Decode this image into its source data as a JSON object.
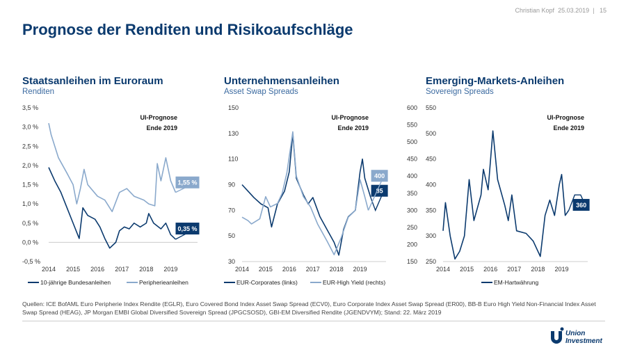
{
  "header": {
    "author": "Christian Kopf",
    "date": "25.03.2019",
    "separator": "|",
    "page": "15"
  },
  "title": "Prognose der Renditen und Risikoaufschläge",
  "colors": {
    "dark": "#0b3a6e",
    "light": "#8aa9cc",
    "zero": "#cccccc"
  },
  "chart_data": [
    {
      "type": "line",
      "title": "Staatsanleihen im Euroraum",
      "subtitle": "Renditen",
      "ylim": [
        -0.5,
        3.5
      ],
      "yticks": [
        "3,5 %",
        "3,0 %",
        "2,5 %",
        "2,0 %",
        "1,5 %",
        "1,0 %",
        "0,5 %",
        "0,0 %",
        "-0,5 %"
      ],
      "xticks": [
        "2014",
        "2015",
        "2016",
        "2017",
        "2018",
        "2019"
      ],
      "xlim": [
        2014,
        2020.1
      ],
      "annotation": "UI-Prognose\nEnde 2019",
      "annotation_lines": [
        "UI-Prognose",
        "Ende 2019"
      ],
      "series": [
        {
          "name": "10-jährige Bundesanleihen",
          "color": "#0b3a6e",
          "x": [
            2014.0,
            2014.25,
            2014.5,
            2014.75,
            2015.0,
            2015.25,
            2015.4,
            2015.6,
            2015.9,
            2016.1,
            2016.3,
            2016.5,
            2016.75,
            2016.9,
            2017.1,
            2017.3,
            2017.5,
            2017.75,
            2018.0,
            2018.1,
            2018.3,
            2018.6,
            2018.8,
            2019.0,
            2019.2
          ],
          "y": [
            1.95,
            1.6,
            1.3,
            0.9,
            0.5,
            0.1,
            0.9,
            0.7,
            0.6,
            0.4,
            0.1,
            -0.15,
            0.0,
            0.3,
            0.4,
            0.35,
            0.5,
            0.4,
            0.5,
            0.75,
            0.5,
            0.35,
            0.5,
            0.2,
            0.08
          ],
          "forecast": {
            "x": [
              2019.2,
              2020.0
            ],
            "y": [
              0.08,
              0.35
            ]
          },
          "label": "0,35 %"
        },
        {
          "name": "Peripherieanleihen",
          "color": "#8aa9cc",
          "x": [
            2014.0,
            2014.1,
            2014.4,
            2014.75,
            2015.0,
            2015.15,
            2015.3,
            2015.45,
            2015.6,
            2016.0,
            2016.3,
            2016.6,
            2016.9,
            2017.2,
            2017.5,
            2017.9,
            2018.1,
            2018.35,
            2018.45,
            2018.6,
            2018.8,
            2019.0,
            2019.2
          ],
          "y": [
            3.1,
            2.8,
            2.2,
            1.8,
            1.5,
            1.0,
            1.4,
            1.9,
            1.5,
            1.2,
            1.1,
            0.8,
            1.3,
            1.4,
            1.2,
            1.1,
            1.0,
            0.95,
            2.05,
            1.6,
            2.2,
            1.6,
            1.3
          ],
          "forecast": {
            "x": [
              2019.2,
              2020.0
            ],
            "y": [
              1.3,
              1.55
            ]
          },
          "label": "1,55 %"
        }
      ]
    },
    {
      "type": "line",
      "title": "Unternehmensanleihen",
      "subtitle": "Asset Swap Spreads",
      "ylim": [
        30,
        150
      ],
      "yticks": [
        "150",
        "130",
        "110",
        "90",
        "70",
        "50",
        "30"
      ],
      "y2lim": [
        150,
        600
      ],
      "y2ticks": [
        "600",
        "550",
        "500",
        "450",
        "400",
        "350",
        "300",
        "250",
        "200",
        "150"
      ],
      "xticks": [
        "2014",
        "2015",
        "2016",
        "2017",
        "2018",
        "2019"
      ],
      "xlim": [
        2014,
        2020.1
      ],
      "annotation_lines": [
        "UI-Prognose",
        "Ende 2019"
      ],
      "series": [
        {
          "name": "EUR-Corporates (links)",
          "axis": "left",
          "color": "#0b3a6e",
          "x": [
            2014.0,
            2014.25,
            2014.5,
            2014.8,
            2015.1,
            2015.25,
            2015.5,
            2015.8,
            2016.0,
            2016.15,
            2016.3,
            2016.6,
            2016.8,
            2017.0,
            2017.3,
            2017.6,
            2017.9,
            2018.1,
            2018.3,
            2018.5,
            2018.8,
            2019.0,
            2019.1,
            2019.2,
            2019.45
          ],
          "y": [
            90,
            85,
            80,
            75,
            72,
            57,
            75,
            85,
            100,
            130,
            95,
            82,
            75,
            80,
            65,
            55,
            45,
            35,
            55,
            65,
            70,
            100,
            110,
            95,
            80
          ],
          "forecast": {
            "x": [
              2019.45,
              2019.65,
              2020.0
            ],
            "y": [
              80,
              70,
              85
            ]
          },
          "label": "85"
        },
        {
          "name": "EUR-High Yield  (rechts)",
          "axis": "right",
          "color": "#8aa9cc",
          "x": [
            2014.0,
            2014.25,
            2014.4,
            2014.75,
            2015.0,
            2015.2,
            2015.5,
            2015.7,
            2015.9,
            2016.15,
            2016.3,
            2016.6,
            2016.9,
            2017.2,
            2017.6,
            2017.9,
            2018.2,
            2018.5,
            2018.8,
            2019.0,
            2019.2,
            2019.35
          ],
          "y": [
            280,
            270,
            260,
            275,
            340,
            310,
            320,
            350,
            410,
            530,
            400,
            340,
            310,
            260,
            210,
            170,
            220,
            280,
            300,
            390,
            340,
            300
          ],
          "forecast": {
            "x": [
              2019.35,
              2020.0
            ],
            "y": [
              300,
              400
            ]
          },
          "label": "400"
        }
      ]
    },
    {
      "type": "line",
      "title": "Emerging-Markets-Anleihen",
      "subtitle": "Sovereign Spreads",
      "ylim": [
        250,
        550
      ],
      "yticks": [
        "550",
        "500",
        "450",
        "400",
        "350",
        "300",
        "250"
      ],
      "xticks": [
        "2014",
        "2015",
        "2016",
        "2017",
        "2018",
        "2019"
      ],
      "xlim": [
        2014,
        2020.1
      ],
      "annotation_lines": [
        "UI-Prognose",
        "Ende 2019"
      ],
      "series": [
        {
          "name": "EM-Hartwährung",
          "color": "#0b3a6e",
          "x": [
            2014.0,
            2014.1,
            2014.3,
            2014.5,
            2014.7,
            2014.9,
            2015.1,
            2015.3,
            2015.6,
            2015.7,
            2015.9,
            2016.1,
            2016.3,
            2016.6,
            2016.75,
            2016.9,
            2017.1,
            2017.5,
            2017.8,
            2018.1,
            2018.3,
            2018.5,
            2018.7,
            2018.9,
            2019.0,
            2019.15,
            2019.3
          ],
          "y": [
            310,
            365,
            300,
            255,
            270,
            300,
            410,
            330,
            380,
            430,
            390,
            505,
            410,
            360,
            330,
            380,
            310,
            305,
            290,
            260,
            340,
            370,
            340,
            400,
            420,
            340,
            350
          ],
          "forecast": {
            "x": [
              2019.3,
              2019.55,
              2019.8,
              2020.0
            ],
            "y": [
              350,
              380,
              380,
              360
            ]
          },
          "label": "360"
        }
      ]
    }
  ],
  "sources": "Quellen: ICE BofAML Euro Peripherie Index Rendite (EGLR), Euro Covered Bond Index Asset Swap Spread (ECV0), Euro Corporate Index Asset Swap Spread (ER00), BB-B Euro High Yield Non-Financial Index Asset Swap Spread (HEAG), JP Morgan EMBI Global Diversified Sovereign Spread (JPGCSOSD), GBI-EM Diversified Rendite (JGENDVYM); Stand: 22. März 2019",
  "logo": {
    "line1": "Union",
    "line2": "Investment"
  }
}
